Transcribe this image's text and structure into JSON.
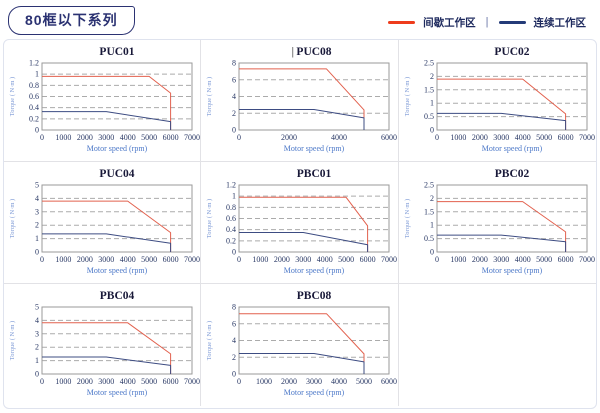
{
  "header": {
    "series_label": "80框以下系列",
    "legend_separator": "|",
    "legend": [
      {
        "label": "间歇工作区",
        "color": "#EE3C1C"
      },
      {
        "label": "连续工作区",
        "color": "#243B78"
      }
    ]
  },
  "chart_style": {
    "plot_border_color": "#9A9A9A",
    "grid_color": "#ABABAB",
    "intermittent_color": "#E2614E",
    "continuous_color": "#3D4C82"
  },
  "chart_data": [
    {
      "type": "line",
      "title": "PUC01",
      "title_cursor": "",
      "xlabel": "Motor speed (rpm)",
      "ylabel": "Torque ( N·m )",
      "xlim": [
        0,
        7000
      ],
      "ylim": [
        0,
        1.2
      ],
      "xticks": [
        0,
        1000,
        2000,
        3000,
        4000,
        5000,
        6000,
        7000
      ],
      "yticks": [
        0,
        0.2,
        0.4,
        0.6,
        0.8,
        1,
        1.2
      ],
      "series": [
        {
          "name": "间歇工作区",
          "zone": "intermittent",
          "points": [
            [
              0,
              0.96
            ],
            [
              5000,
              0.96
            ],
            [
              6000,
              0.66
            ],
            [
              6000,
              0
            ]
          ]
        },
        {
          "name": "连续工作区",
          "zone": "continuous",
          "points": [
            [
              0,
              0.33
            ],
            [
              3000,
              0.33
            ],
            [
              6000,
              0.15
            ],
            [
              6000,
              0
            ]
          ]
        }
      ]
    },
    {
      "type": "line",
      "title": "PUC08",
      "title_cursor": "|",
      "xlabel": "Motor speed (rpm)",
      "ylabel": "Torque ( N·m )",
      "xlim": [
        0,
        6000
      ],
      "ylim": [
        0,
        8
      ],
      "xticks": [
        0,
        2000,
        4000,
        6000
      ],
      "yticks": [
        0,
        2,
        4,
        6,
        8
      ],
      "series": [
        {
          "name": "间歇工作区",
          "zone": "intermittent",
          "points": [
            [
              0,
              7.3
            ],
            [
              3500,
              7.3
            ],
            [
              5000,
              2.4
            ],
            [
              5000,
              0
            ]
          ]
        },
        {
          "name": "连续工作区",
          "zone": "continuous",
          "points": [
            [
              0,
              2.45
            ],
            [
              3000,
              2.45
            ],
            [
              5000,
              1.45
            ],
            [
              5000,
              0
            ]
          ]
        }
      ]
    },
    {
      "type": "line",
      "title": "PUC02",
      "title_cursor": "",
      "xlabel": "Motor speed (rpm)",
      "ylabel": "Torque ( N·m )",
      "xlim": [
        0,
        7000
      ],
      "ylim": [
        0,
        2.5
      ],
      "xticks": [
        0,
        1000,
        2000,
        3000,
        4000,
        5000,
        6000,
        7000
      ],
      "yticks": [
        0,
        0.5,
        1,
        1.5,
        2,
        2.5
      ],
      "series": [
        {
          "name": "间歇工作区",
          "zone": "intermittent",
          "points": [
            [
              0,
              1.9
            ],
            [
              4000,
              1.9
            ],
            [
              6000,
              0.6
            ],
            [
              6000,
              0
            ]
          ]
        },
        {
          "name": "连续工作区",
          "zone": "continuous",
          "points": [
            [
              0,
              0.62
            ],
            [
              3000,
              0.62
            ],
            [
              6000,
              0.35
            ],
            [
              6000,
              0
            ]
          ]
        }
      ]
    },
    {
      "type": "line",
      "title": "PUC04",
      "title_cursor": "",
      "xlabel": "Motor speed (rpm)",
      "ylabel": "Torque ( N·m )",
      "xlim": [
        0,
        7000
      ],
      "ylim": [
        0,
        5
      ],
      "xticks": [
        0,
        1000,
        2000,
        3000,
        4000,
        5000,
        6000,
        7000
      ],
      "yticks": [
        0,
        1,
        2,
        3,
        4,
        5
      ],
      "series": [
        {
          "name": "间歇工作区",
          "zone": "intermittent",
          "points": [
            [
              0,
              3.8
            ],
            [
              4000,
              3.8
            ],
            [
              6000,
              1.45
            ],
            [
              6000,
              0
            ]
          ]
        },
        {
          "name": "连续工作区",
          "zone": "continuous",
          "points": [
            [
              0,
              1.35
            ],
            [
              3000,
              1.35
            ],
            [
              6000,
              0.65
            ],
            [
              6000,
              0
            ]
          ]
        }
      ]
    },
    {
      "type": "line",
      "title": "PBC01",
      "title_cursor": "",
      "xlabel": "Motor speed (rpm)",
      "ylabel": "Torque ( N·m )",
      "xlim": [
        0,
        7000
      ],
      "ylim": [
        0,
        1.2
      ],
      "xticks": [
        0,
        1000,
        2000,
        3000,
        4000,
        5000,
        6000,
        7000
      ],
      "yticks": [
        0,
        0.2,
        0.4,
        0.6,
        0.8,
        1,
        1.2
      ],
      "series": [
        {
          "name": "间歇工作区",
          "zone": "intermittent",
          "points": [
            [
              0,
              0.98
            ],
            [
              5000,
              0.98
            ],
            [
              6000,
              0.47
            ],
            [
              6000,
              0
            ]
          ]
        },
        {
          "name": "连续工作区",
          "zone": "continuous",
          "points": [
            [
              0,
              0.35
            ],
            [
              3000,
              0.35
            ],
            [
              6000,
              0.13
            ],
            [
              6000,
              0
            ]
          ]
        }
      ]
    },
    {
      "type": "line",
      "title": "PBC02",
      "title_cursor": "",
      "xlabel": "Motor speed (rpm)",
      "ylabel": "Torque ( N·m )",
      "xlim": [
        0,
        7000
      ],
      "ylim": [
        0,
        2.5
      ],
      "xticks": [
        0,
        1000,
        2000,
        3000,
        4000,
        5000,
        6000,
        7000
      ],
      "yticks": [
        0,
        0.5,
        1,
        1.5,
        2,
        2.5
      ],
      "series": [
        {
          "name": "间歇工作区",
          "zone": "intermittent",
          "points": [
            [
              0,
              1.88
            ],
            [
              4000,
              1.88
            ],
            [
              6000,
              0.75
            ],
            [
              6000,
              0
            ]
          ]
        },
        {
          "name": "连续工作区",
          "zone": "continuous",
          "points": [
            [
              0,
              0.63
            ],
            [
              3000,
              0.63
            ],
            [
              6000,
              0.38
            ],
            [
              6000,
              0
            ]
          ]
        }
      ]
    },
    {
      "type": "line",
      "title": "PBC04",
      "title_cursor": "",
      "xlabel": "Motor speed (rpm)",
      "ylabel": "Torque ( N·m )",
      "xlim": [
        0,
        7000
      ],
      "ylim": [
        0,
        5
      ],
      "xticks": [
        0,
        1000,
        2000,
        3000,
        4000,
        5000,
        6000,
        7000
      ],
      "yticks": [
        0,
        1,
        2,
        3,
        4,
        5
      ],
      "series": [
        {
          "name": "间歇工作区",
          "zone": "intermittent",
          "points": [
            [
              0,
              3.82
            ],
            [
              4000,
              3.82
            ],
            [
              6000,
              1.5
            ],
            [
              6000,
              0
            ]
          ]
        },
        {
          "name": "连续工作区",
          "zone": "continuous",
          "points": [
            [
              0,
              1.27
            ],
            [
              3000,
              1.27
            ],
            [
              6000,
              0.64
            ],
            [
              6000,
              0
            ]
          ]
        }
      ]
    },
    {
      "type": "line",
      "title": "PBC08",
      "title_cursor": "",
      "xlabel": "Motor speed (rpm)",
      "ylabel": "Torque ( N·m )",
      "xlim": [
        0,
        6000
      ],
      "ylim": [
        0,
        8
      ],
      "xticks": [
        0,
        1000,
        2000,
        3000,
        4000,
        5000,
        6000
      ],
      "yticks": [
        0,
        2,
        4,
        6,
        8
      ],
      "series": [
        {
          "name": "间歇工作区",
          "zone": "intermittent",
          "points": [
            [
              0,
              7.2
            ],
            [
              3500,
              7.2
            ],
            [
              5000,
              2.4
            ],
            [
              5000,
              0
            ]
          ]
        },
        {
          "name": "连续工作区",
          "zone": "continuous",
          "points": [
            [
              0,
              2.45
            ],
            [
              3000,
              2.45
            ],
            [
              5000,
              1.45
            ],
            [
              5000,
              0
            ]
          ]
        }
      ]
    }
  ]
}
